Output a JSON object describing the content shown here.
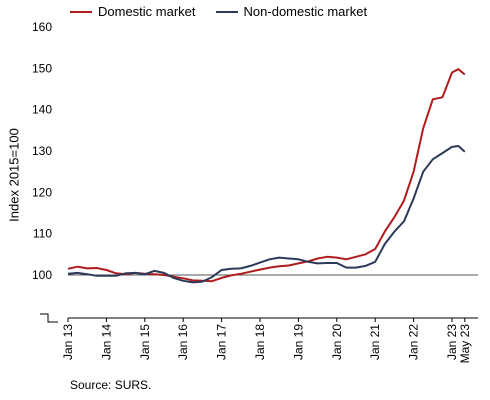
{
  "legend": {
    "domestic_label": "Domestic market",
    "non_domestic_label": "Non-domestic market"
  },
  "source": "Source: SURS.",
  "colors": {
    "domestic": "#b01c1c",
    "non_domestic": "#2c3a5a",
    "baseline": "#555555"
  },
  "chart_data": {
    "type": "line",
    "ylabel": "Index 2015=100",
    "xlabel": "",
    "ylim": [
      90,
      160
    ],
    "y_ticks": [
      100,
      110,
      120,
      130,
      140,
      150,
      160
    ],
    "y_axis_break": true,
    "reference_line": 100,
    "x_ticks": [
      "Jan 13",
      "Jan 14",
      "Jan 15",
      "Jan 16",
      "Jan 17",
      "Jan 18",
      "Jan 19",
      "Jan 20",
      "Jan 21",
      "Jan 22",
      "Jan 23",
      "May 23"
    ],
    "x_start": "Jan 13",
    "legend_position": "top",
    "grid": false,
    "series": [
      {
        "name": "Domestic market",
        "points": [
          [
            "2013-01",
            101.5
          ],
          [
            "2013-04",
            102.0
          ],
          [
            "2013-07",
            101.6
          ],
          [
            "2013-10",
            101.7
          ],
          [
            "2014-01",
            101.2
          ],
          [
            "2014-04",
            100.4
          ],
          [
            "2014-07",
            100.2
          ],
          [
            "2014-10",
            100.5
          ],
          [
            "2015-01",
            100.3
          ],
          [
            "2015-04",
            100.2
          ],
          [
            "2015-07",
            100.0
          ],
          [
            "2015-10",
            99.6
          ],
          [
            "2016-01",
            99.2
          ],
          [
            "2016-04",
            98.7
          ],
          [
            "2016-07",
            98.6
          ],
          [
            "2016-10",
            98.5
          ],
          [
            "2017-01",
            99.3
          ],
          [
            "2017-04",
            99.9
          ],
          [
            "2017-07",
            100.3
          ],
          [
            "2017-10",
            100.8
          ],
          [
            "2018-01",
            101.3
          ],
          [
            "2018-04",
            101.8
          ],
          [
            "2018-07",
            102.1
          ],
          [
            "2018-10",
            102.3
          ],
          [
            "2019-01",
            102.8
          ],
          [
            "2019-04",
            103.3
          ],
          [
            "2019-07",
            104.0
          ],
          [
            "2019-10",
            104.4
          ],
          [
            "2020-01",
            104.2
          ],
          [
            "2020-04",
            103.8
          ],
          [
            "2020-07",
            104.4
          ],
          [
            "2020-10",
            105.0
          ],
          [
            "2021-01",
            106.3
          ],
          [
            "2021-04",
            110.5
          ],
          [
            "2021-07",
            114.0
          ],
          [
            "2021-10",
            118.0
          ],
          [
            "2022-01",
            125.0
          ],
          [
            "2022-04",
            135.5
          ],
          [
            "2022-07",
            142.5
          ],
          [
            "2022-10",
            143.0
          ],
          [
            "2023-01",
            149.0
          ],
          [
            "2023-03",
            149.8
          ],
          [
            "2023-05",
            148.5
          ]
        ]
      },
      {
        "name": "Non-domestic market",
        "points": [
          [
            "2013-01",
            100.3
          ],
          [
            "2013-04",
            100.5
          ],
          [
            "2013-07",
            100.2
          ],
          [
            "2013-10",
            99.8
          ],
          [
            "2014-01",
            99.8
          ],
          [
            "2014-04",
            99.8
          ],
          [
            "2014-07",
            100.4
          ],
          [
            "2014-10",
            100.5
          ],
          [
            "2015-01",
            100.2
          ],
          [
            "2015-04",
            101.0
          ],
          [
            "2015-07",
            100.5
          ],
          [
            "2015-10",
            99.3
          ],
          [
            "2016-01",
            98.6
          ],
          [
            "2016-04",
            98.2
          ],
          [
            "2016-07",
            98.4
          ],
          [
            "2016-10",
            99.5
          ],
          [
            "2017-01",
            101.2
          ],
          [
            "2017-04",
            101.5
          ],
          [
            "2017-07",
            101.6
          ],
          [
            "2017-10",
            102.2
          ],
          [
            "2018-01",
            103.0
          ],
          [
            "2018-04",
            103.8
          ],
          [
            "2018-07",
            104.2
          ],
          [
            "2018-10",
            104.0
          ],
          [
            "2019-01",
            103.8
          ],
          [
            "2019-04",
            103.2
          ],
          [
            "2019-07",
            102.8
          ],
          [
            "2019-10",
            102.9
          ],
          [
            "2020-01",
            102.9
          ],
          [
            "2020-04",
            101.8
          ],
          [
            "2020-07",
            101.8
          ],
          [
            "2020-10",
            102.2
          ],
          [
            "2021-01",
            103.2
          ],
          [
            "2021-04",
            107.5
          ],
          [
            "2021-07",
            110.5
          ],
          [
            "2021-10",
            113.0
          ],
          [
            "2022-01",
            118.5
          ],
          [
            "2022-04",
            125.0
          ],
          [
            "2022-07",
            128.0
          ],
          [
            "2022-10",
            129.5
          ],
          [
            "2023-01",
            131.0
          ],
          [
            "2023-03",
            131.2
          ],
          [
            "2023-05",
            129.8
          ]
        ]
      }
    ]
  }
}
